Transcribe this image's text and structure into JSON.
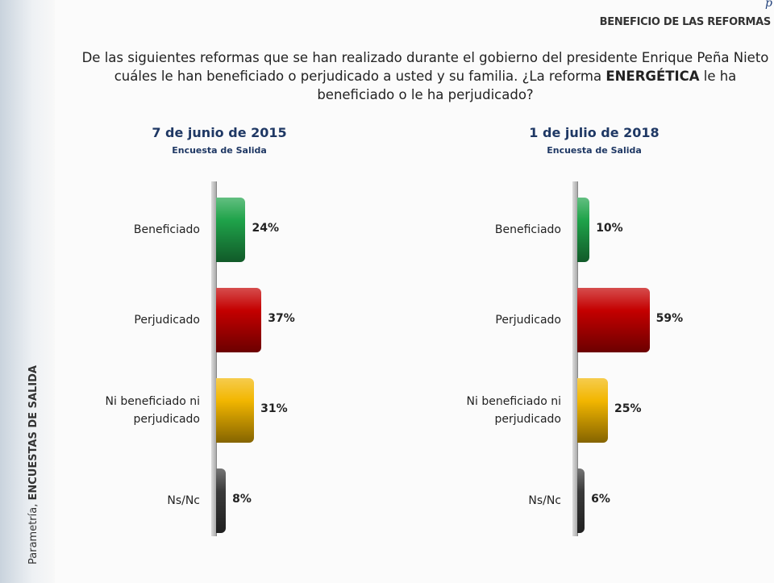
{
  "corner_mark": "p",
  "header": "BENEFICIO DE LAS REFORMAS",
  "question": {
    "before": "De las siguientes reformas que se han realizado durante el gobierno del presidente Enrique Peña Nieto cuáles le han beneficiado o perjudicado a usted y su familia. ¿La reforma ",
    "emphasis": "ENERGÉTICA",
    "after": " le ha beneficiado o le ha perjudicado?"
  },
  "sidebar": {
    "source": "Parametría, ",
    "emphasis": "ENCUESTAS DE SALIDA"
  },
  "chart_data": [
    {
      "type": "bar",
      "orientation": "horizontal",
      "title": "7 de junio de 2015",
      "subtitle": "Encuesta de Salida",
      "categories": [
        "Beneficiado",
        "Perjudicado",
        "Ni beneficiado ni perjudicado",
        "Ns/Nc"
      ],
      "values": [
        24,
        37,
        31,
        8
      ],
      "value_labels": [
        "24%",
        "37%",
        "31%",
        "8%"
      ],
      "colors": [
        "#1fa34a",
        "#c40000",
        "#f2b600",
        "#3a3a3a"
      ]
    },
    {
      "type": "bar",
      "orientation": "horizontal",
      "title": "1 de julio de 2018",
      "subtitle": "Encuesta de Salida",
      "categories": [
        "Beneficiado",
        "Perjudicado",
        "Ni beneficiado ni perjudicado",
        "Ns/Nc"
      ],
      "values": [
        10,
        59,
        25,
        6
      ],
      "value_labels": [
        "10%",
        "59%",
        "25%",
        "6%"
      ],
      "colors": [
        "#1fa34a",
        "#c40000",
        "#f2b600",
        "#3a3a3a"
      ]
    }
  ]
}
